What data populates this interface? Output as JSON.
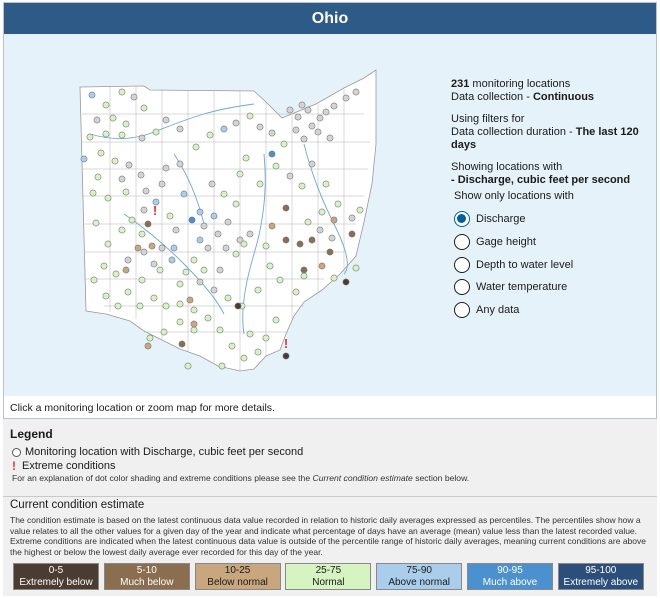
{
  "header": {
    "title": "Ohio"
  },
  "summary": {
    "count": "231",
    "count_suffix": "monitoring locations",
    "collection_prefix": "Data collection - ",
    "collection_value": "Continuous",
    "filters_prefix": "Using filters for",
    "duration_prefix": "Data collection duration - ",
    "duration_value": "The last 120 days",
    "showing_prefix": "Showing locations with",
    "showing_value": "- Discharge, cubic feet per second"
  },
  "filter": {
    "title": "Show only locations with",
    "options": [
      {
        "label": "Discharge",
        "selected": true
      },
      {
        "label": "Gage height",
        "selected": false
      },
      {
        "label": "Depth to water level",
        "selected": false
      },
      {
        "label": "Water temperature",
        "selected": false
      },
      {
        "label": "Any data",
        "selected": false
      }
    ]
  },
  "map_hint": "Click a monitoring location or zoom map for more details.",
  "legend": {
    "title": "Legend",
    "marker_label": "Monitoring location with Discharge, cubic feet per second",
    "extreme_label": "Extreme conditions",
    "note_prefix": "For an explanation of dot color shading and extreme conditions please see the ",
    "note_link": "Current condition estimate",
    "note_suffix": " section below."
  },
  "condition_estimate": {
    "title": "Current condition estimate",
    "description": "The condition estimate is based on the latest continuous data value recorded in relation to historic daily averages expressed as percentiles. The percentiles show how a value relates to all the other values for a given day of the year and indicate what percentage of days have an average (mean) value less than the latest recorded value. Extreme conditions are indicated when the latest continuous data value is outside of the percentile range of historic daily averages, meaning current conditions are above the highest or below the lowest daily average ever recorded for this day of the year.",
    "categories": [
      {
        "range": "0-5",
        "label": "Extremely below",
        "color": "#4a3c31",
        "text_color": "#ffffff"
      },
      {
        "range": "5-10",
        "label": "Much below",
        "color": "#8b6d4f",
        "text_color": "#ffffff"
      },
      {
        "range": "10-25",
        "label": "Below normal",
        "color": "#c8a67e",
        "text_color": "#1b1b1b"
      },
      {
        "range": "25-75",
        "label": "Normal",
        "color": "#d6f3c2",
        "text_color": "#1b1b1b"
      },
      {
        "range": "75-90",
        "label": "Above normal",
        "color": "#a9cdea",
        "text_color": "#1b1b1b"
      },
      {
        "range": "90-95",
        "label": "Much above",
        "color": "#4b90cf",
        "text_color": "#ffffff"
      },
      {
        "range": "95-100",
        "label": "Extremely above",
        "color": "#2c4e7a",
        "text_color": "#ffffff"
      }
    ]
  },
  "map_colors": {
    "normal": "#d6f3c2",
    "above": "#a9cdea",
    "much_above": "#4b90cf",
    "below": "#c8a67e",
    "much_below": "#8b6d4f",
    "extreme_below": "#4a3c31",
    "no_data": "#d3d3d3",
    "extreme_marker": "#d83933"
  }
}
